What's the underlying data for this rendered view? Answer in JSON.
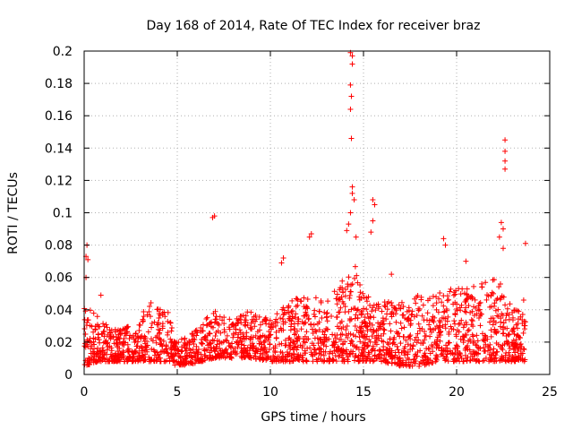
{
  "chart_data": {
    "type": "scatter",
    "title": "Day 168 of 2014, Rate Of TEC Index for receiver braz",
    "xlabel": "GPS time / hours",
    "ylabel": "ROTI / TECUs",
    "xlim": [
      0,
      25
    ],
    "ylim": [
      0,
      0.2
    ],
    "x_ticks": [
      0,
      5,
      10,
      15,
      20,
      25
    ],
    "x_tick_labels": [
      "0",
      "5",
      "10",
      "15",
      "20",
      "25"
    ],
    "y_ticks": [
      0,
      0.02,
      0.04,
      0.06,
      0.08,
      0.1,
      0.12,
      0.14,
      0.16,
      0.18,
      0.2
    ],
    "y_tick_labels": [
      "0",
      "0.02",
      "0.04",
      "0.06",
      "0.08",
      "0.1",
      "0.12",
      "0.14",
      "0.16",
      "0.18",
      "0.2"
    ],
    "grid": true,
    "marker": "+",
    "color": "#ff0000",
    "envelope": [
      {
        "x": 0.0,
        "lo": 0.005,
        "hi": 0.045
      },
      {
        "x": 0.5,
        "lo": 0.007,
        "hi": 0.04
      },
      {
        "x": 1.0,
        "lo": 0.008,
        "hi": 0.032
      },
      {
        "x": 2.0,
        "lo": 0.008,
        "hi": 0.028
      },
      {
        "x": 3.0,
        "lo": 0.008,
        "hi": 0.035
      },
      {
        "x": 3.5,
        "lo": 0.008,
        "hi": 0.045
      },
      {
        "x": 4.5,
        "lo": 0.008,
        "hi": 0.04
      },
      {
        "x": 5.0,
        "lo": 0.005,
        "hi": 0.02
      },
      {
        "x": 6.0,
        "lo": 0.007,
        "hi": 0.028
      },
      {
        "x": 7.0,
        "lo": 0.01,
        "hi": 0.04
      },
      {
        "x": 8.0,
        "lo": 0.01,
        "hi": 0.035
      },
      {
        "x": 9.0,
        "lo": 0.01,
        "hi": 0.04
      },
      {
        "x": 10.0,
        "lo": 0.008,
        "hi": 0.035
      },
      {
        "x": 11.0,
        "lo": 0.008,
        "hi": 0.045
      },
      {
        "x": 12.0,
        "lo": 0.008,
        "hi": 0.05
      },
      {
        "x": 13.0,
        "lo": 0.008,
        "hi": 0.045
      },
      {
        "x": 14.0,
        "lo": 0.008,
        "hi": 0.06
      },
      {
        "x": 14.5,
        "lo": 0.008,
        "hi": 0.07
      },
      {
        "x": 15.0,
        "lo": 0.008,
        "hi": 0.05
      },
      {
        "x": 16.0,
        "lo": 0.008,
        "hi": 0.045
      },
      {
        "x": 17.0,
        "lo": 0.005,
        "hi": 0.045
      },
      {
        "x": 18.0,
        "lo": 0.005,
        "hi": 0.05
      },
      {
        "x": 19.0,
        "lo": 0.008,
        "hi": 0.05
      },
      {
        "x": 20.0,
        "lo": 0.008,
        "hi": 0.055
      },
      {
        "x": 21.0,
        "lo": 0.008,
        "hi": 0.055
      },
      {
        "x": 22.0,
        "lo": 0.008,
        "hi": 0.06
      },
      {
        "x": 22.5,
        "lo": 0.008,
        "hi": 0.055
      },
      {
        "x": 23.0,
        "lo": 0.008,
        "hi": 0.04
      },
      {
        "x": 23.7,
        "lo": 0.008,
        "hi": 0.04
      }
    ],
    "outliers": [
      {
        "x": 0.1,
        "y": 0.073
      },
      {
        "x": 0.15,
        "y": 0.08
      },
      {
        "x": 0.2,
        "y": 0.071
      },
      {
        "x": 0.1,
        "y": 0.06
      },
      {
        "x": 0.9,
        "y": 0.049
      },
      {
        "x": 6.9,
        "y": 0.097
      },
      {
        "x": 7.0,
        "y": 0.098
      },
      {
        "x": 10.6,
        "y": 0.069
      },
      {
        "x": 10.7,
        "y": 0.072
      },
      {
        "x": 12.1,
        "y": 0.085
      },
      {
        "x": 12.2,
        "y": 0.087
      },
      {
        "x": 14.3,
        "y": 0.199
      },
      {
        "x": 14.4,
        "y": 0.197
      },
      {
        "x": 14.4,
        "y": 0.192
      },
      {
        "x": 14.3,
        "y": 0.179
      },
      {
        "x": 14.35,
        "y": 0.172
      },
      {
        "x": 14.3,
        "y": 0.164
      },
      {
        "x": 14.35,
        "y": 0.146
      },
      {
        "x": 14.4,
        "y": 0.116
      },
      {
        "x": 14.4,
        "y": 0.112
      },
      {
        "x": 14.5,
        "y": 0.108
      },
      {
        "x": 14.3,
        "y": 0.1
      },
      {
        "x": 14.2,
        "y": 0.093
      },
      {
        "x": 14.6,
        "y": 0.085
      },
      {
        "x": 14.1,
        "y": 0.089
      },
      {
        "x": 15.5,
        "y": 0.108
      },
      {
        "x": 15.6,
        "y": 0.105
      },
      {
        "x": 15.5,
        "y": 0.095
      },
      {
        "x": 15.4,
        "y": 0.088
      },
      {
        "x": 16.5,
        "y": 0.062
      },
      {
        "x": 19.3,
        "y": 0.084
      },
      {
        "x": 19.4,
        "y": 0.08
      },
      {
        "x": 20.5,
        "y": 0.07
      },
      {
        "x": 22.4,
        "y": 0.094
      },
      {
        "x": 22.5,
        "y": 0.09
      },
      {
        "x": 22.3,
        "y": 0.085
      },
      {
        "x": 22.5,
        "y": 0.078
      },
      {
        "x": 22.6,
        "y": 0.145
      },
      {
        "x": 22.6,
        "y": 0.138
      },
      {
        "x": 22.6,
        "y": 0.132
      },
      {
        "x": 22.6,
        "y": 0.127
      },
      {
        "x": 23.7,
        "y": 0.081
      },
      {
        "x": 23.6,
        "y": 0.046
      }
    ]
  }
}
